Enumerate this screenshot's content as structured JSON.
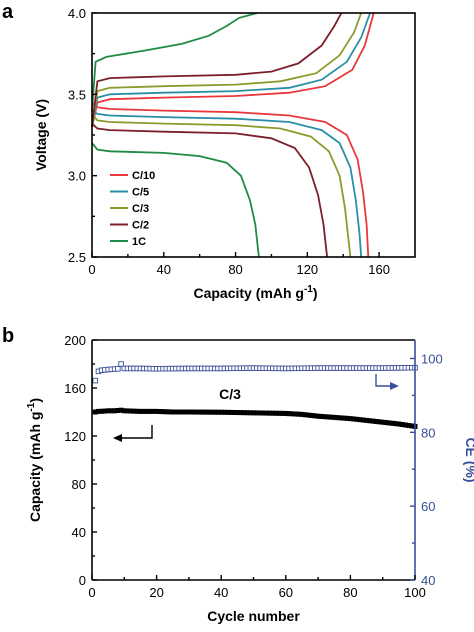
{
  "chart_data": [
    {
      "panel": "a",
      "type": "line",
      "xlabel": "Capacity (mAh g",
      "xlabel_sup": "-1",
      "xlabel_end": ")",
      "ylabel": "Voltage (V)",
      "xlim": [
        0,
        180
      ],
      "ylim": [
        2.5,
        4.0
      ],
      "xticks": [
        0,
        40,
        80,
        120,
        160
      ],
      "yticks": [
        2.5,
        3.0,
        3.5,
        4.0
      ],
      "ytick_labels": [
        "2.5",
        "3.0",
        "3.5",
        "4.0"
      ],
      "legend": "left-lower",
      "series": [
        {
          "name": "C/10",
          "color": "#e8383d",
          "charge": [
            [
              0,
              3.3
            ],
            [
              3,
              3.45
            ],
            [
              10,
              3.47
            ],
            [
              40,
              3.48
            ],
            [
              80,
              3.49
            ],
            [
              110,
              3.51
            ],
            [
              130,
              3.55
            ],
            [
              145,
              3.65
            ],
            [
              152,
              3.8
            ],
            [
              157,
              4.0
            ]
          ],
          "discharge": [
            [
              0,
              3.45
            ],
            [
              3,
              3.42
            ],
            [
              10,
              3.41
            ],
            [
              40,
              3.4
            ],
            [
              80,
              3.39
            ],
            [
              110,
              3.37
            ],
            [
              130,
              3.33
            ],
            [
              142,
              3.25
            ],
            [
              148,
              3.1
            ],
            [
              151,
              2.9
            ],
            [
              153,
              2.7
            ],
            [
              154,
              2.5
            ]
          ]
        },
        {
          "name": "C/5",
          "color": "#2a8fa6",
          "charge": [
            [
              0,
              3.3
            ],
            [
              3,
              3.48
            ],
            [
              10,
              3.5
            ],
            [
              40,
              3.51
            ],
            [
              80,
              3.52
            ],
            [
              110,
              3.54
            ],
            [
              128,
              3.59
            ],
            [
              142,
              3.7
            ],
            [
              150,
              3.85
            ],
            [
              155,
              4.0
            ]
          ],
          "discharge": [
            [
              0,
              3.4
            ],
            [
              3,
              3.38
            ],
            [
              10,
              3.37
            ],
            [
              40,
              3.36
            ],
            [
              80,
              3.35
            ],
            [
              110,
              3.33
            ],
            [
              128,
              3.28
            ],
            [
              138,
              3.2
            ],
            [
              144,
              3.05
            ],
            [
              147,
              2.85
            ],
            [
              149,
              2.65
            ],
            [
              150,
              2.5
            ]
          ]
        },
        {
          "name": "C/3",
          "color": "#8c9a2e",
          "charge": [
            [
              0,
              3.3
            ],
            [
              3,
              3.52
            ],
            [
              10,
              3.54
            ],
            [
              40,
              3.55
            ],
            [
              80,
              3.56
            ],
            [
              105,
              3.58
            ],
            [
              125,
              3.63
            ],
            [
              138,
              3.74
            ],
            [
              146,
              3.88
            ],
            [
              150,
              4.0
            ]
          ],
          "discharge": [
            [
              0,
              3.38
            ],
            [
              3,
              3.34
            ],
            [
              10,
              3.33
            ],
            [
              40,
              3.32
            ],
            [
              80,
              3.31
            ],
            [
              105,
              3.29
            ],
            [
              122,
              3.24
            ],
            [
              132,
              3.15
            ],
            [
              138,
              3.0
            ],
            [
              141,
              2.8
            ],
            [
              143,
              2.6
            ],
            [
              144,
              2.5
            ]
          ]
        },
        {
          "name": "C/2",
          "color": "#7a1f2b",
          "charge": [
            [
              0,
              3.3
            ],
            [
              3,
              3.58
            ],
            [
              10,
              3.6
            ],
            [
              40,
              3.61
            ],
            [
              80,
              3.62
            ],
            [
              100,
              3.64
            ],
            [
              115,
              3.69
            ],
            [
              128,
              3.8
            ],
            [
              135,
              3.92
            ],
            [
              139,
              4.0
            ]
          ],
          "discharge": [
            [
              0,
              3.32
            ],
            [
              3,
              3.29
            ],
            [
              10,
              3.28
            ],
            [
              40,
              3.27
            ],
            [
              80,
              3.26
            ],
            [
              100,
              3.23
            ],
            [
              113,
              3.17
            ],
            [
              121,
              3.05
            ],
            [
              126,
              2.88
            ],
            [
              129,
              2.7
            ],
            [
              131,
              2.5
            ]
          ]
        },
        {
          "name": "1C",
          "color": "#1e8c44",
          "charge": [
            [
              0,
              3.4
            ],
            [
              2,
              3.7
            ],
            [
              8,
              3.73
            ],
            [
              30,
              3.77
            ],
            [
              50,
              3.81
            ],
            [
              65,
              3.86
            ],
            [
              75,
              3.92
            ],
            [
              82,
              3.97
            ],
            [
              92,
              4.0
            ]
          ],
          "discharge": [
            [
              0,
              3.2
            ],
            [
              3,
              3.16
            ],
            [
              10,
              3.15
            ],
            [
              40,
              3.14
            ],
            [
              60,
              3.12
            ],
            [
              75,
              3.08
            ],
            [
              83,
              3.0
            ],
            [
              88,
              2.85
            ],
            [
              91,
              2.7
            ],
            [
              93,
              2.5
            ]
          ]
        }
      ]
    },
    {
      "panel": "b",
      "type": "scatter",
      "xlabel": "Cycle number",
      "ylabel": "Capacity (mAh g",
      "ylabel_sup": "-1",
      "ylabel_end": ")",
      "y2label": "CE (%)",
      "xlim": [
        0,
        100
      ],
      "ylim": [
        0,
        200
      ],
      "y2lim": [
        40,
        105
      ],
      "xticks": [
        0,
        20,
        40,
        60,
        80,
        100
      ],
      "yticks": [
        0,
        40,
        80,
        120,
        160,
        200
      ],
      "y2ticks": [
        40,
        60,
        80,
        100
      ],
      "annotation": "C/3",
      "capacity": {
        "color": "#000000",
        "points": [
          [
            1,
            140
          ],
          [
            2,
            140.5
          ],
          [
            3,
            140.6
          ],
          [
            5,
            141
          ],
          [
            7,
            141
          ],
          [
            9,
            141.5
          ],
          [
            10,
            141
          ],
          [
            15,
            140.5
          ],
          [
            20,
            140.5
          ],
          [
            25,
            140
          ],
          [
            30,
            140
          ],
          [
            40,
            139.8
          ],
          [
            50,
            139.3
          ],
          [
            60,
            138.8
          ],
          [
            65,
            138
          ],
          [
            70,
            136.5
          ],
          [
            75,
            135.5
          ],
          [
            80,
            134.5
          ],
          [
            85,
            133
          ],
          [
            90,
            131.5
          ],
          [
            95,
            130
          ],
          [
            100,
            128
          ]
        ]
      },
      "ce": {
        "color": "#3a4f9a",
        "points": [
          [
            1,
            94
          ],
          [
            2,
            96.5
          ],
          [
            3,
            96.8
          ],
          [
            5,
            97
          ],
          [
            8,
            97.2
          ],
          [
            9,
            98.5
          ],
          [
            10,
            97.3
          ],
          [
            15,
            97.3
          ],
          [
            20,
            97.2
          ],
          [
            30,
            97.3
          ],
          [
            40,
            97.3
          ],
          [
            50,
            97.4
          ],
          [
            60,
            97.3
          ],
          [
            70,
            97.4
          ],
          [
            80,
            97.4
          ],
          [
            90,
            97.4
          ],
          [
            100,
            97.5
          ]
        ]
      }
    }
  ]
}
